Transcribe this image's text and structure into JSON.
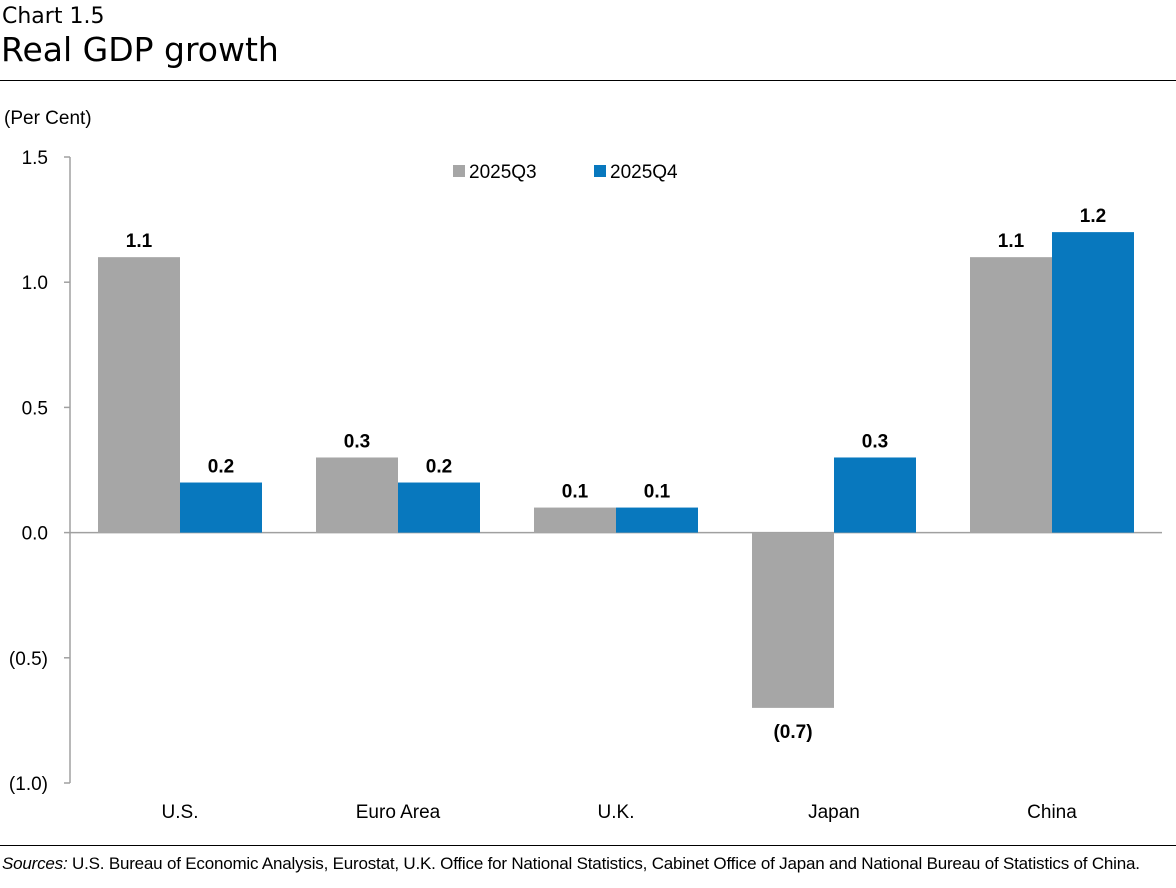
{
  "header": {
    "kicker": "Chart 1.5",
    "title": "Real GDP growth"
  },
  "footer": {
    "sources_label": "Sources:",
    "sources_text": "U.S. Bureau of Economic Analysis, Eurostat, U.K. Office for National Statistics, Cabinet Office of Japan and National Bureau of Statistics of China."
  },
  "chart_data": {
    "type": "bar",
    "title": "Real GDP growth",
    "ylabel": "(Per Cent)",
    "xlabel": "",
    "ylim": [
      -1.0,
      1.5
    ],
    "yticks": [
      1.5,
      1.0,
      0.5,
      0.0,
      -0.5,
      -1.0
    ],
    "ytick_labels": [
      "1.5",
      "1.0",
      "0.5",
      "0.0",
      "(0.5)",
      "(1.0)"
    ],
    "grid": false,
    "legend_position": "top-center",
    "categories": [
      "U.S.",
      "Euro Area",
      "U.K.",
      "Japan",
      "China"
    ],
    "series": [
      {
        "name": "2025Q3",
        "color": "#a6a6a6",
        "values": [
          1.1,
          0.3,
          0.1,
          -0.7,
          1.1
        ]
      },
      {
        "name": "2025Q4",
        "color": "#0878be",
        "values": [
          0.2,
          0.2,
          0.1,
          0.3,
          1.2
        ]
      }
    ]
  }
}
